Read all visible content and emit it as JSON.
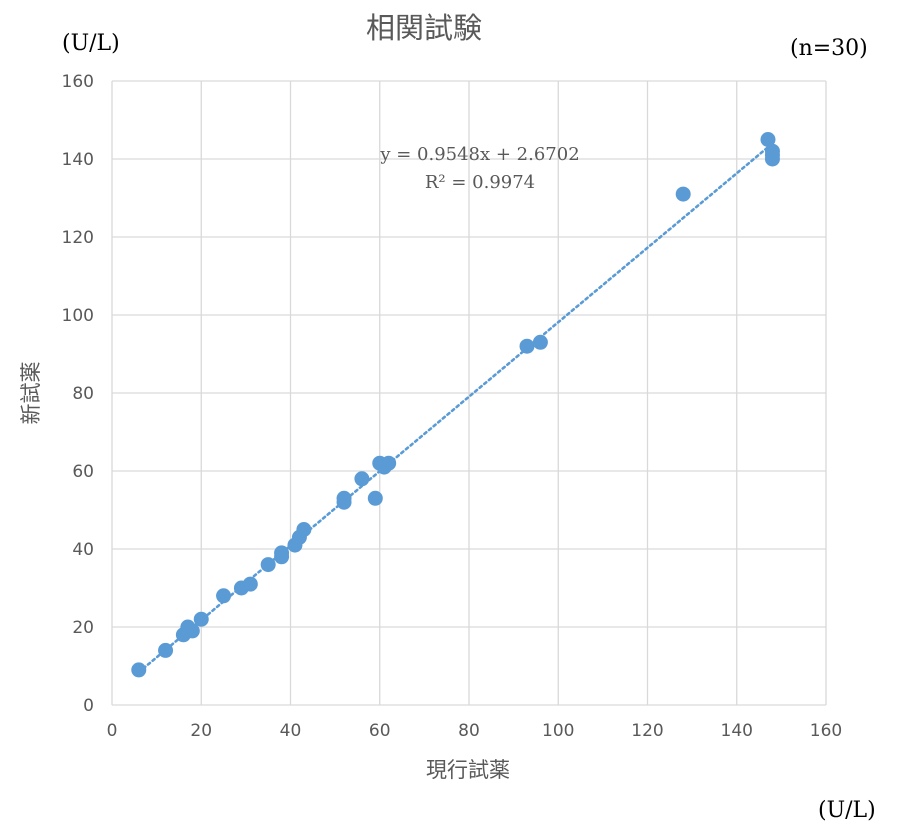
{
  "chart_data": {
    "type": "scatter",
    "title": "相関試験",
    "unit_y": "(U/L)",
    "unit_x": "(U/L)",
    "n_label": "(n=30)",
    "xlabel": "現行試薬",
    "ylabel": "新試薬",
    "xlim": [
      0,
      160
    ],
    "ylim": [
      0,
      160
    ],
    "x_ticks": [
      "0",
      "20",
      "40",
      "60",
      "80",
      "100",
      "120",
      "140",
      "160"
    ],
    "y_ticks": [
      "0",
      "20",
      "40",
      "60",
      "80",
      "100",
      "120",
      "140",
      "160"
    ],
    "grid": true,
    "trendline": {
      "slope": 0.9548,
      "intercept": 2.6702,
      "equation": "y = 0.9548x + 2.6702",
      "r_squared": "R² = 0.9974"
    },
    "colors": {
      "points": "#5b9bd5",
      "trendline": "#5b9bd5",
      "grid": "#d9d9d9",
      "text": "#595959"
    },
    "points": [
      {
        "x": 6,
        "y": 9
      },
      {
        "x": 12,
        "y": 14
      },
      {
        "x": 16,
        "y": 18
      },
      {
        "x": 17,
        "y": 20
      },
      {
        "x": 17,
        "y": 19
      },
      {
        "x": 18,
        "y": 19
      },
      {
        "x": 20,
        "y": 22
      },
      {
        "x": 25,
        "y": 28
      },
      {
        "x": 29,
        "y": 30
      },
      {
        "x": 31,
        "y": 31
      },
      {
        "x": 35,
        "y": 36
      },
      {
        "x": 38,
        "y": 38
      },
      {
        "x": 38,
        "y": 39
      },
      {
        "x": 41,
        "y": 41
      },
      {
        "x": 42,
        "y": 43
      },
      {
        "x": 43,
        "y": 45
      },
      {
        "x": 52,
        "y": 52
      },
      {
        "x": 52,
        "y": 53
      },
      {
        "x": 56,
        "y": 58
      },
      {
        "x": 59,
        "y": 53
      },
      {
        "x": 60,
        "y": 62
      },
      {
        "x": 61,
        "y": 61
      },
      {
        "x": 62,
        "y": 62
      },
      {
        "x": 93,
        "y": 92
      },
      {
        "x": 96,
        "y": 93
      },
      {
        "x": 128,
        "y": 131
      },
      {
        "x": 147,
        "y": 145
      },
      {
        "x": 148,
        "y": 142
      },
      {
        "x": 148,
        "y": 140
      },
      {
        "x": 148,
        "y": 141
      }
    ]
  }
}
